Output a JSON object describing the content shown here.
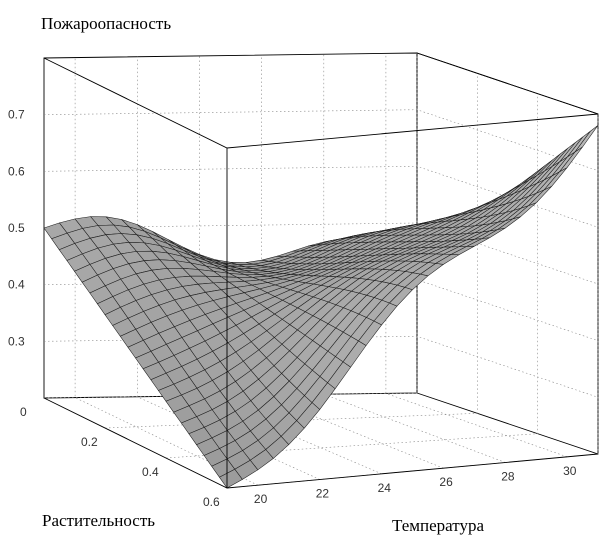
{
  "chart_data": {
    "type": "surface",
    "zlabel": "Пожароопасность",
    "ylabel": "Растительность",
    "xlabel": "Температура",
    "x_ticks": [
      "20",
      "22",
      "24",
      "26",
      "28",
      "30"
    ],
    "y_ticks": [
      "0",
      "0.2",
      "0.4",
      "0.6"
    ],
    "z_ticks": [
      "0.3",
      "0.4",
      "0.5",
      "0.6",
      "0.7"
    ],
    "xlim": [
      19,
      31
    ],
    "ylim": [
      0,
      0.6
    ],
    "zlim": [
      0.2,
      0.8
    ],
    "grid": true,
    "surface_color": "#c4c4c4",
    "samples": {
      "x": [
        19,
        31
      ],
      "y": [
        0,
        0.6
      ],
      "z": [
        [
          0.5,
          0.43
        ],
        [
          0.2,
          0.78
        ]
      ]
    }
  }
}
